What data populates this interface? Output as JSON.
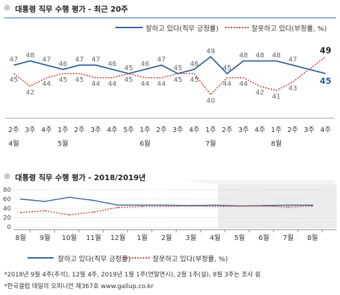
{
  "chart1": {
    "title": "대통령 직무 수행 평가 - 최근 20주",
    "bullet": "◎",
    "legend_pos_label": "잘하고 있다(직무 긍정률)",
    "legend_neg_label": "잘못하고 있다(부정률, %)"
  },
  "chart2": {
    "title": "대통령 직무 수행 평가 - 2018/2019년",
    "bullet": "◎",
    "legend_pos_label": "잘하고 있다(직무 긍정률)",
    "legend_neg_label": "잘못하고 있다(부정률, %)"
  },
  "footnotes": {
    "line1": "*2018년 9월 4주(추석), 12월 4주, 2019년 1월 1주(연말연시), 2월 1주(설), 8월 3주는 조사 쉼",
    "line2": "*한국갤럽 데일리 오피니언 제367호 www.gallup.co.kr"
  },
  "colors": {
    "positive": "#2e5f9a",
    "negative": "#c0392b",
    "accent": "#3a6fb0"
  },
  "chart_data": [
    {
      "type": "line",
      "title": "대통령 직무 수행 평가 - 최근 20주",
      "x_weeks": [
        "2주",
        "3주",
        "4주",
        "1주",
        "2주",
        "3주",
        "4주",
        "5주",
        "1주",
        "2주",
        "3주",
        "4주",
        "1주",
        "2주",
        "3주",
        "4주",
        "1주",
        "2주",
        "3주",
        "4주"
      ],
      "x_months": [
        "4월",
        "",
        "",
        "5월",
        "",
        "",
        "",
        "",
        "6월",
        "",
        "",
        "",
        "7월",
        "",
        "",
        "",
        "8월",
        "",
        "",
        ""
      ],
      "series": [
        {
          "name": "잘하고 있다(직무 긍정률)",
          "values": [
            47,
            48,
            47,
            46,
            47,
            47,
            46,
            45,
            46,
            47,
            45,
            46,
            49,
            45,
            48,
            48,
            48,
            47,
            null,
            45
          ]
        },
        {
          "name": "잘못하고 있다(부정률, %)",
          "values": [
            45,
            42,
            44,
            45,
            45,
            44,
            44,
            45,
            44,
            44,
            45,
            45,
            40,
            44,
            44,
            42,
            41,
            43,
            null,
            49
          ]
        }
      ],
      "grid": false,
      "legend": "top-right"
    },
    {
      "type": "line",
      "title": "대통령 직무 수행 평가 - 2018/2019년",
      "x": [
        "8월",
        "9월",
        "10월",
        "11월",
        "12월",
        "1월",
        "2월",
        "3월",
        "4월",
        "5월",
        "6월",
        "7월",
        "8월"
      ],
      "y_ticks": [
        0,
        20,
        40,
        60,
        80
      ],
      "ylim": [
        0,
        80
      ],
      "series": [
        {
          "name": "잘하고 있다(직무 긍정률)",
          "values": [
            60,
            55,
            64,
            57,
            47,
            47,
            47,
            46,
            47,
            45,
            46,
            47,
            47
          ]
        },
        {
          "name": "잘못하고 있다(부정률, %)",
          "values": [
            31,
            35,
            26,
            32,
            42,
            44,
            44,
            45,
            44,
            45,
            45,
            43,
            45
          ]
        }
      ],
      "grid": true,
      "legend": "bottom"
    }
  ]
}
